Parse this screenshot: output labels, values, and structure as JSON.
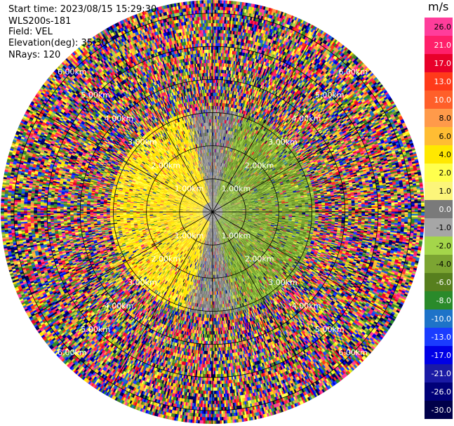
{
  "header": {
    "start_time": "Start time: 2023/08/15 15:29:30",
    "instrument": "WLS200s-181",
    "field": "Field: VEL",
    "elevation": "Elevation(deg): 35.30",
    "nrays": "NRays: 120"
  },
  "chart_data": {
    "type": "heatmap",
    "projection": "polar PPI",
    "field": "VEL",
    "units": "m/s",
    "elevation_deg": 35.3,
    "n_rays": 120,
    "range_rings_km": [
      1.0,
      2.0,
      3.0,
      4.0,
      5.0,
      6.0
    ],
    "ring_labels": [
      "1.00km",
      "2.00km",
      "3.00km",
      "4.00km",
      "5.00km",
      "6.00km"
    ],
    "max_range_km": 6.4,
    "spokes_deg": [
      0,
      30,
      60,
      90,
      120,
      150,
      180,
      210,
      240,
      270,
      300,
      330
    ],
    "colorbar": {
      "unit_label": "m/s",
      "ticks": [
        "26.0",
        "21.0",
        "17.0",
        "13.0",
        "10.0",
        "8.0",
        "6.0",
        "4.0",
        "2.0",
        "1.0",
        "0.0",
        "-1.0",
        "-2.0",
        "-4.0",
        "-6.0",
        "-8.0",
        "-10.0",
        "-13.0",
        "-17.0",
        "-21.0",
        "-26.0",
        "-30.0"
      ],
      "colors": [
        "#ff3d9b",
        "#ff1f6a",
        "#e8002a",
        "#ff3a1a",
        "#ff5f2a",
        "#ff9a4a",
        "#ffbd33",
        "#ffe800",
        "#ffff4d",
        "#fcf57a",
        "#7a7a7a",
        "#a6a6a6",
        "#a4d64a",
        "#7ca532",
        "#577f1e",
        "#2a8a2a",
        "#1e73c8",
        "#1a3cff",
        "#0000e6",
        "#1a1aa5",
        "#000078",
        "#00004a"
      ]
    },
    "inner_field": {
      "approaching_negative": "green (east)",
      "receding_positive": "yellow (west)",
      "valid_range_km": 3.1
    }
  }
}
